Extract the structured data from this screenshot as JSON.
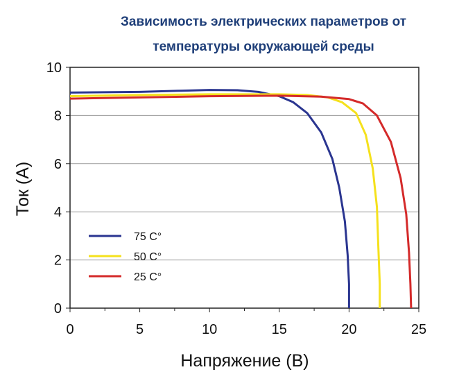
{
  "chart_data": {
    "type": "line",
    "title_lines": [
      "Зависимость электрических параметров от",
      "температуры окружающей среды"
    ],
    "xlabel": "Напряжение (В)",
    "ylabel": "Ток (А)",
    "xlim": [
      0,
      25
    ],
    "ylim": [
      0,
      10
    ],
    "xticks": [
      "0",
      "5",
      "10",
      "15",
      "20",
      "25"
    ],
    "yticks": [
      "0",
      "2",
      "4",
      "6",
      "8",
      "10"
    ],
    "grid": "horizontal",
    "legend_position": "left",
    "series": [
      {
        "name": "75 C°",
        "color": "#2a3590",
        "points": [
          [
            0,
            8.95
          ],
          [
            5,
            8.98
          ],
          [
            8,
            9.03
          ],
          [
            10,
            9.06
          ],
          [
            12,
            9.05
          ],
          [
            13.5,
            8.98
          ],
          [
            15,
            8.8
          ],
          [
            16,
            8.55
          ],
          [
            17,
            8.1
          ],
          [
            18,
            7.3
          ],
          [
            18.8,
            6.2
          ],
          [
            19.3,
            5.0
          ],
          [
            19.7,
            3.6
          ],
          [
            19.9,
            2.2
          ],
          [
            20.0,
            1.0
          ],
          [
            20.0,
            0
          ]
        ]
      },
      {
        "name": "50 C°",
        "color": "#f5e11c",
        "points": [
          [
            0,
            8.8
          ],
          [
            5,
            8.85
          ],
          [
            10,
            8.88
          ],
          [
            15,
            8.88
          ],
          [
            17,
            8.85
          ],
          [
            18.5,
            8.75
          ],
          [
            19.5,
            8.55
          ],
          [
            20.5,
            8.1
          ],
          [
            21.2,
            7.2
          ],
          [
            21.7,
            5.8
          ],
          [
            22.0,
            4.2
          ],
          [
            22.1,
            2.5
          ],
          [
            22.2,
            1.0
          ],
          [
            22.2,
            0
          ]
        ]
      },
      {
        "name": "25 C°",
        "color": "#d42a2a",
        "points": [
          [
            0,
            8.7
          ],
          [
            5,
            8.75
          ],
          [
            10,
            8.8
          ],
          [
            15,
            8.82
          ],
          [
            18,
            8.78
          ],
          [
            20,
            8.68
          ],
          [
            21,
            8.5
          ],
          [
            22,
            8.0
          ],
          [
            23,
            6.9
          ],
          [
            23.7,
            5.4
          ],
          [
            24.1,
            3.9
          ],
          [
            24.3,
            2.3
          ],
          [
            24.4,
            1.0
          ],
          [
            24.45,
            0
          ]
        ]
      }
    ]
  }
}
